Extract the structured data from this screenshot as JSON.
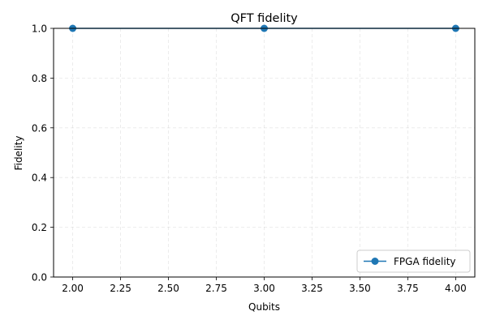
{
  "chart_data": {
    "type": "line",
    "title": "QFT fidelity",
    "xlabel": "Qubits",
    "ylabel": "Fidelity",
    "xlim": [
      1.9,
      4.1
    ],
    "ylim": [
      0.0,
      1.0
    ],
    "xticks": [
      2.0,
      2.25,
      2.5,
      2.75,
      3.0,
      3.25,
      3.5,
      3.75,
      4.0
    ],
    "xtick_labels": [
      "2.00",
      "2.25",
      "2.50",
      "2.75",
      "3.00",
      "3.25",
      "3.50",
      "3.75",
      "4.00"
    ],
    "yticks": [
      0.0,
      0.2,
      0.4,
      0.6,
      0.8,
      1.0
    ],
    "ytick_labels": [
      "0.0",
      "0.2",
      "0.4",
      "0.6",
      "0.8",
      "1.0"
    ],
    "grid": true,
    "legend_position": "lower-right",
    "series": [
      {
        "name": "FPGA fidelity",
        "color": "#1f77b4",
        "marker": "circle",
        "x": [
          2,
          3,
          4
        ],
        "y": [
          1.0,
          1.0,
          1.0
        ]
      }
    ]
  }
}
